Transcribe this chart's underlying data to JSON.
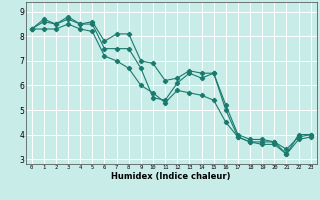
{
  "xlabel": "Humidex (Indice chaleur)",
  "ylabel": "",
  "xlim": [
    -0.5,
    23.5
  ],
  "ylim": [
    2.8,
    9.4
  ],
  "yticks": [
    3,
    4,
    5,
    6,
    7,
    8,
    9
  ],
  "xticks": [
    0,
    1,
    2,
    3,
    4,
    5,
    6,
    7,
    8,
    9,
    10,
    11,
    12,
    13,
    14,
    15,
    16,
    17,
    18,
    19,
    20,
    21,
    22,
    23
  ],
  "background_color": "#c8ece8",
  "grid_color": "#ffffff",
  "line_color": "#1a7a6e",
  "line1_y": [
    8.3,
    8.7,
    8.5,
    8.8,
    8.5,
    8.6,
    7.8,
    8.1,
    8.1,
    7.0,
    6.9,
    6.2,
    6.3,
    6.6,
    6.5,
    6.5,
    5.2,
    4.0,
    3.8,
    3.8,
    3.7,
    3.4,
    3.9,
    4.0
  ],
  "line2_y": [
    8.3,
    8.6,
    8.5,
    8.7,
    8.5,
    8.5,
    7.5,
    7.5,
    7.5,
    6.7,
    5.5,
    5.4,
    6.1,
    6.5,
    6.3,
    6.5,
    5.0,
    3.9,
    3.7,
    3.7,
    3.7,
    3.2,
    4.0,
    4.0
  ],
  "line3_y": [
    8.3,
    8.3,
    8.3,
    8.5,
    8.3,
    8.2,
    7.2,
    7.0,
    6.7,
    6.0,
    5.7,
    5.3,
    5.8,
    5.7,
    5.6,
    5.4,
    4.5,
    3.9,
    3.7,
    3.6,
    3.6,
    3.2,
    3.8,
    3.9
  ]
}
